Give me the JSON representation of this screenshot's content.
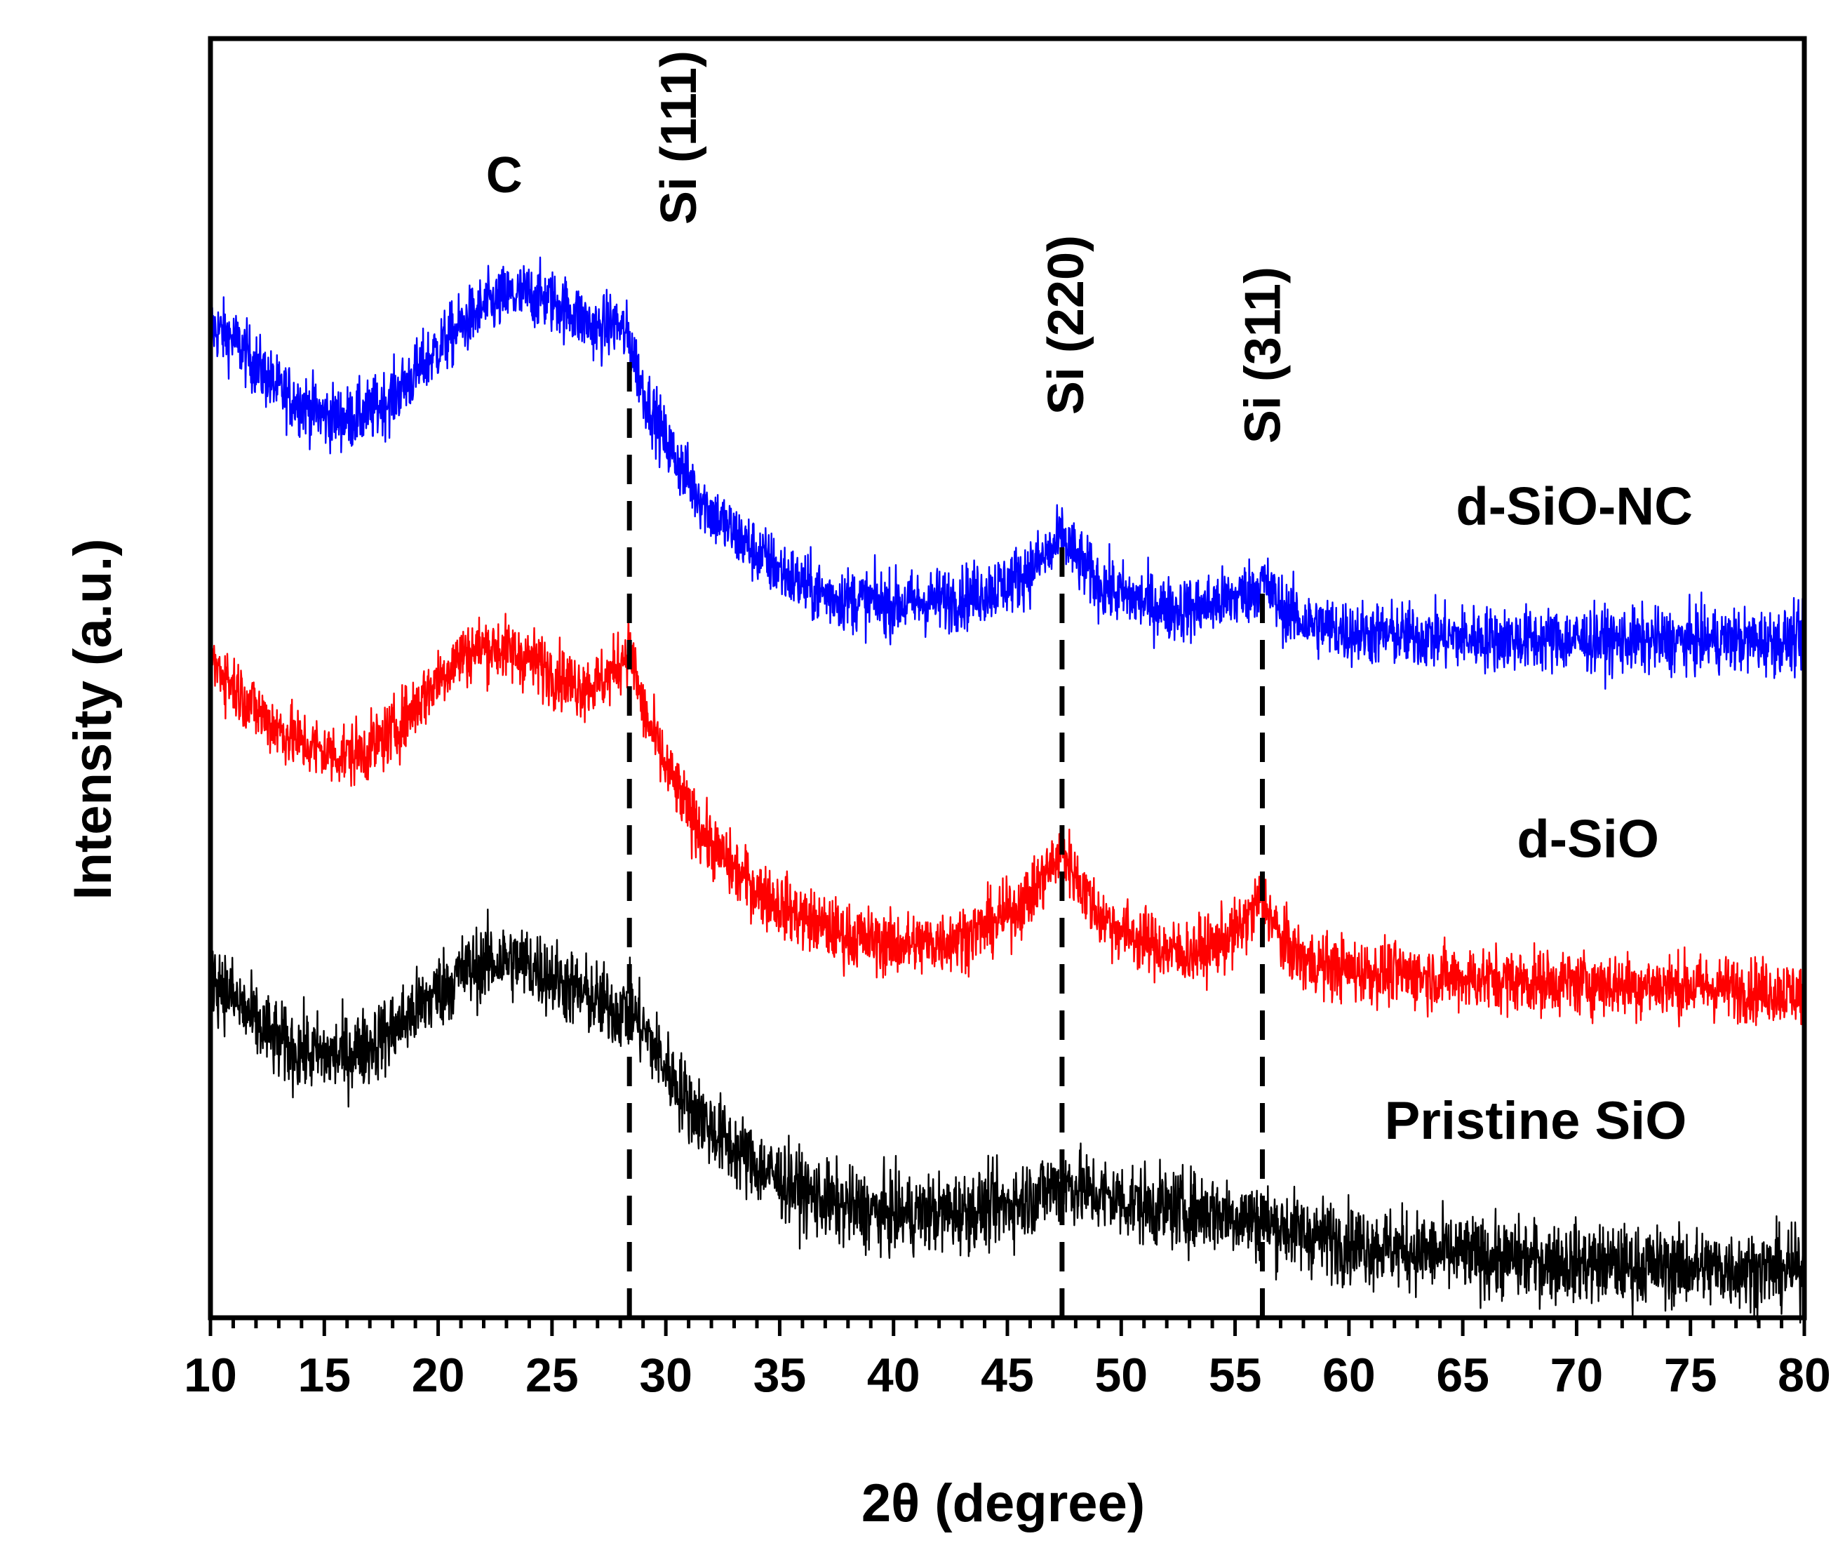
{
  "chart_data": {
    "type": "line",
    "xlabel": "2θ (degree)",
    "ylabel": "Intensity (a.u.)",
    "xlim": [
      10,
      80
    ],
    "ylim": [
      0,
      100
    ],
    "xticks": [
      "10",
      "15",
      "20",
      "25",
      "30",
      "35",
      "40",
      "45",
      "50",
      "55",
      "60",
      "65",
      "70",
      "75",
      "80"
    ],
    "minor_tick_step": 1,
    "y_tick_labels": false,
    "reference_lines": [
      {
        "name": "Si (111)",
        "x": 28.4
      },
      {
        "name": "Si (220)",
        "x": 47.4
      },
      {
        "name": "Si (311)",
        "x": 56.2
      }
    ],
    "annotations": [
      {
        "text": "C",
        "x": 22.9,
        "y": 88
      }
    ],
    "series": [
      {
        "name": "d-SiO-NC",
        "color": "#0000ff",
        "label_position": {
          "x": 69.9,
          "y": 62
        },
        "noise": 1.8,
        "x": [
          10,
          11,
          12,
          13,
          14,
          15,
          16,
          17,
          18,
          19,
          20,
          21,
          22,
          23,
          24,
          25,
          26,
          27,
          27.8,
          28.4,
          29,
          30,
          31,
          32,
          33,
          34,
          35,
          36,
          37,
          38,
          39,
          40,
          41,
          42,
          43,
          44,
          45,
          46,
          47,
          47.4,
          48,
          49,
          50,
          51,
          52,
          53,
          54,
          55,
          55.6,
          56.2,
          57,
          58,
          59,
          60,
          62,
          64,
          66,
          68,
          70,
          72,
          74,
          76,
          78,
          80
        ],
        "values": [
          77.5,
          76.5,
          74.5,
          72.5,
          71.5,
          70.5,
          70.3,
          70.8,
          72.0,
          73.8,
          75.8,
          77.5,
          79.0,
          79.8,
          80.0,
          79.5,
          78.5,
          77.2,
          77.8,
          76.5,
          72.5,
          68.5,
          65.5,
          63.0,
          61.3,
          59.8,
          58.5,
          57.3,
          56.5,
          56.2,
          56.0,
          55.8,
          55.9,
          56.1,
          56.3,
          56.8,
          57.4,
          58.5,
          60.0,
          61.0,
          59.5,
          57.4,
          56.5,
          56.0,
          55.4,
          55.4,
          55.8,
          56.3,
          56.8,
          57.6,
          55.6,
          54.4,
          54.0,
          53.6,
          53.4,
          53.2,
          53.1,
          53.0,
          53.0,
          52.9,
          52.9,
          53.0,
          52.9,
          52.9
        ]
      },
      {
        "name": "d-SiO",
        "color": "#ff0000",
        "label_position": {
          "x": 70.5,
          "y": 36
        },
        "noise": 1.8,
        "x": [
          10,
          11,
          12,
          13,
          14,
          15,
          16,
          17,
          18,
          19,
          20,
          21,
          22,
          23,
          24,
          25,
          26,
          27,
          27.7,
          28.4,
          29,
          30,
          31,
          32,
          33,
          34,
          35,
          36,
          37,
          38,
          39,
          40,
          41,
          42,
          43,
          44,
          45,
          46,
          47,
          47.4,
          48,
          49,
          50,
          51,
          52,
          53,
          54,
          55,
          55.6,
          56.2,
          57,
          58,
          59,
          60,
          62,
          64,
          66,
          68,
          70,
          72,
          74,
          76,
          78,
          80
        ],
        "values": [
          51.5,
          49.5,
          47.5,
          46.0,
          45.0,
          44.2,
          44.0,
          44.5,
          45.8,
          47.8,
          50.0,
          51.8,
          52.5,
          52.2,
          51.5,
          50.5,
          49.5,
          49.5,
          50.5,
          52.5,
          47.5,
          43.0,
          39.5,
          37.0,
          35.0,
          33.5,
          32.3,
          31.3,
          30.5,
          29.9,
          29.5,
          29.2,
          29.2,
          29.4,
          29.8,
          30.5,
          31.5,
          33.0,
          35.5,
          36.7,
          34.5,
          31.5,
          30.3,
          29.5,
          28.7,
          28.5,
          29.0,
          30.0,
          31.3,
          33.0,
          29.5,
          28.0,
          27.5,
          27.2,
          26.9,
          26.6,
          26.5,
          26.3,
          26.2,
          26.0,
          26.0,
          25.8,
          25.6,
          25.4
        ]
      },
      {
        "name": "Pristine SiO",
        "color": "#000000",
        "label_position": {
          "x": 68.2,
          "y": 14
        },
        "noise": 2.2,
        "x": [
          10,
          11,
          12,
          13,
          14,
          15,
          16,
          17,
          18,
          19,
          20,
          21,
          22,
          23,
          24,
          25,
          26,
          27,
          28,
          28.4,
          29,
          30,
          31,
          32,
          33,
          34,
          35,
          36,
          37,
          38,
          39,
          40,
          41,
          42,
          43,
          44,
          45,
          46,
          47,
          47.4,
          48,
          49,
          50,
          51,
          52,
          53,
          54,
          55,
          56,
          57,
          58,
          59,
          60,
          62,
          64,
          66,
          68,
          70,
          72,
          74,
          76,
          78,
          80
        ],
        "values": [
          27.0,
          25.0,
          23.0,
          21.5,
          20.8,
          20.5,
          20.6,
          21.3,
          22.5,
          24.0,
          25.6,
          26.9,
          27.7,
          28.0,
          27.6,
          26.7,
          25.6,
          24.7,
          24.0,
          24.2,
          22.6,
          19.5,
          16.8,
          14.8,
          13.2,
          11.9,
          10.8,
          9.9,
          9.1,
          8.6,
          8.3,
          8.1,
          8.1,
          8.2,
          8.3,
          8.5,
          8.8,
          9.4,
          10.2,
          10.7,
          10.2,
          9.6,
          9.2,
          8.8,
          8.5,
          8.4,
          8.3,
          8.0,
          7.6,
          7.1,
          6.6,
          6.2,
          5.9,
          5.4,
          5.0,
          4.7,
          4.5,
          4.3,
          4.1,
          4.0,
          3.9,
          3.8,
          3.7
        ]
      }
    ]
  }
}
